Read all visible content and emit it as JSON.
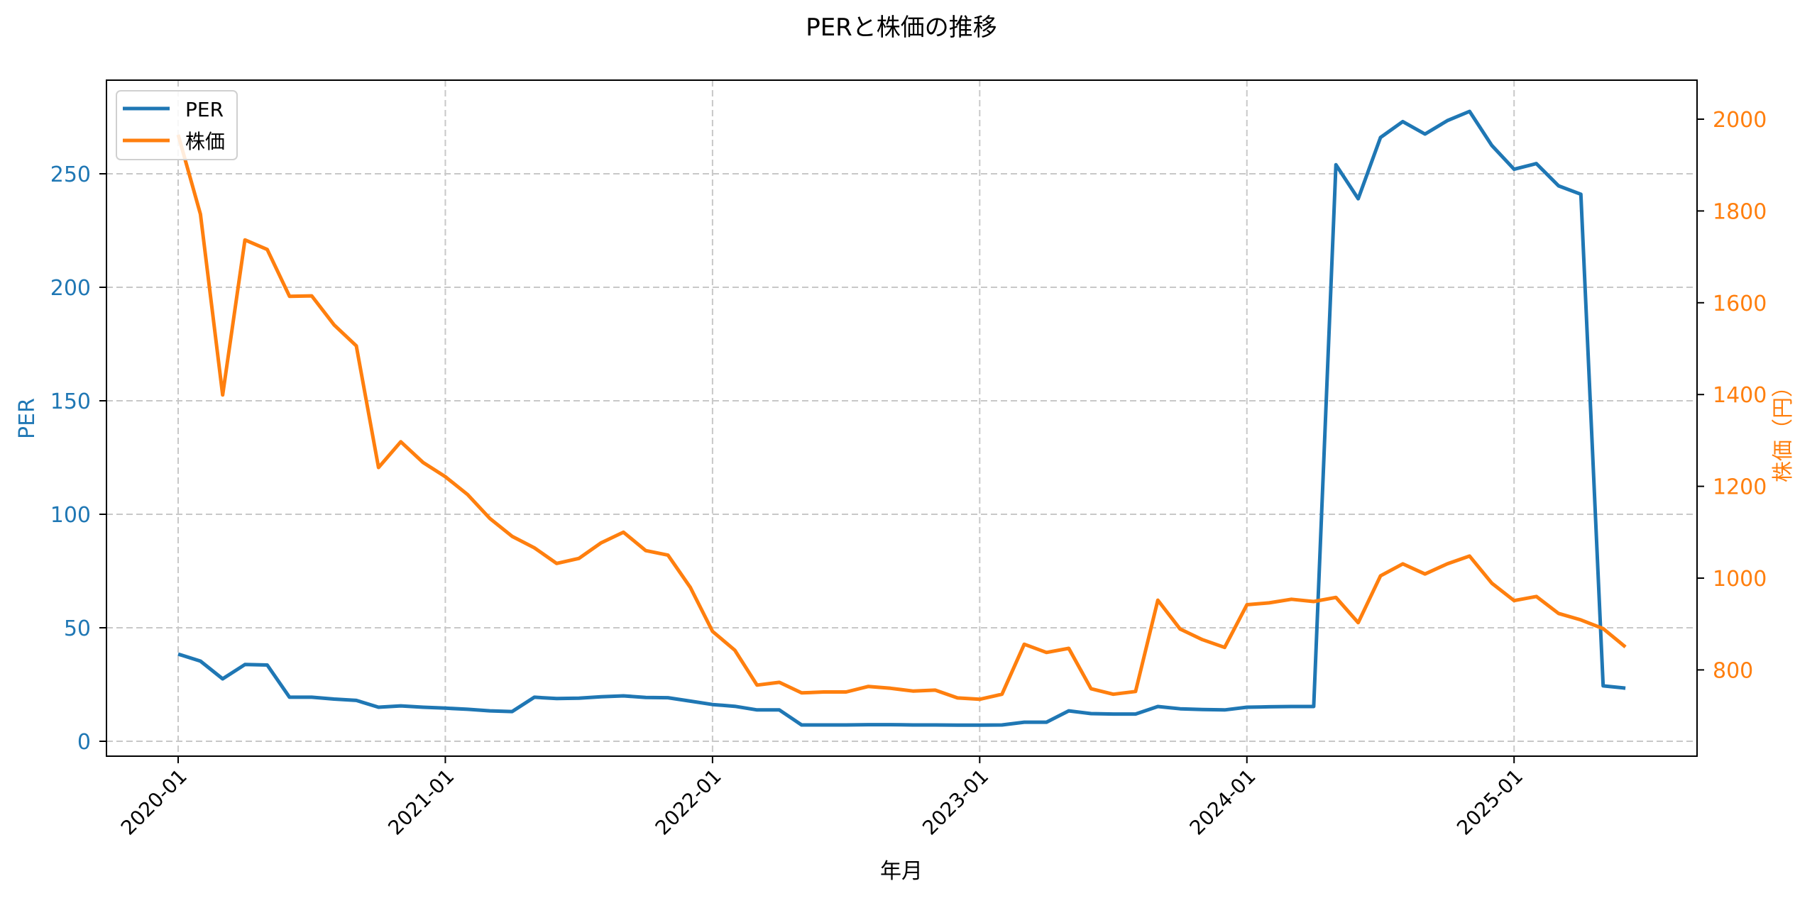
{
  "chart_data": {
    "type": "line",
    "title": "PERと株価の推移",
    "xlabel": "年月",
    "ylabel": "PER",
    "ylabel_right": "株価（円）",
    "x_tick_labels": [
      "2020-01",
      "2021-01",
      "2022-01",
      "2023-01",
      "2024-01",
      "2025-01"
    ],
    "y_ticks_left": [
      0,
      50,
      100,
      150,
      200,
      250
    ],
    "y_ticks_right": [
      800,
      1000,
      1200,
      1400,
      1600,
      1800,
      2000
    ],
    "ylim_left": [
      -6.5,
      291
    ],
    "ylim_right": [
      630,
      2085
    ],
    "grid": true,
    "legend_position": "upper left",
    "x": [
      "2020-01",
      "2020-02",
      "2020-03",
      "2020-04",
      "2020-05",
      "2020-06",
      "2020-07",
      "2020-08",
      "2020-09",
      "2020-10",
      "2020-11",
      "2020-12",
      "2021-01",
      "2021-02",
      "2021-03",
      "2021-04",
      "2021-05",
      "2021-06",
      "2021-07",
      "2021-08",
      "2021-09",
      "2021-10",
      "2021-11",
      "2021-12",
      "2022-01",
      "2022-02",
      "2022-03",
      "2022-04",
      "2022-05",
      "2022-06",
      "2022-07",
      "2022-08",
      "2022-09",
      "2022-10",
      "2022-11",
      "2022-12",
      "2023-01",
      "2023-02",
      "2023-03",
      "2023-04",
      "2023-05",
      "2023-06",
      "2023-07",
      "2023-08",
      "2023-09",
      "2023-10",
      "2023-11",
      "2023-12",
      "2024-01",
      "2024-02",
      "2024-03",
      "2024-04",
      "2024-05",
      "2024-06",
      "2024-07",
      "2024-08",
      "2024-09",
      "2024-10",
      "2024-11",
      "2024-12",
      "2025-01",
      "2025-02",
      "2025-03",
      "2025-04",
      "2025-05",
      "2025-06"
    ],
    "series": [
      {
        "name": "PER",
        "axis": "left",
        "color": "#1f77b4",
        "values": [
          38.4,
          35.3,
          27.5,
          33.8,
          33.6,
          19.4,
          19.4,
          18.6,
          18.0,
          15.0,
          15.6,
          15.0,
          14.6,
          14.1,
          13.4,
          13.1,
          19.4,
          18.8,
          19.0,
          19.6,
          20.0,
          19.3,
          19.2,
          17.7,
          16.2,
          15.4,
          13.8,
          13.8,
          7.2,
          7.2,
          7.2,
          7.3,
          7.3,
          7.2,
          7.2,
          7.1,
          7.1,
          7.2,
          8.4,
          8.4,
          13.4,
          12.2,
          12.0,
          12.0,
          15.3,
          14.3,
          14.0,
          13.8,
          15.0,
          15.2,
          15.3,
          15.3,
          254.0,
          239.0,
          266.0,
          273.0,
          267.5,
          273.4,
          277.5,
          262.5,
          252.0,
          254.5,
          244.7,
          241.0,
          24.4,
          23.4
        ]
      },
      {
        "name": "株価",
        "axis": "right",
        "color": "#ff7f0e",
        "values": [
          1966,
          1793,
          1399,
          1737,
          1716,
          1614,
          1615,
          1552,
          1506,
          1241,
          1297,
          1252,
          1221,
          1182,
          1130,
          1091,
          1066,
          1032,
          1043,
          1077,
          1100,
          1060,
          1050,
          980,
          884,
          843,
          767,
          773,
          750,
          752,
          752,
          764,
          760,
          754,
          756,
          739,
          736,
          747,
          856,
          838,
          847,
          759,
          747,
          753,
          952,
          889,
          866,
          849,
          942,
          946,
          954,
          949,
          958,
          903,
          1005,
          1031,
          1009,
          1031,
          1048,
          989,
          951,
          960,
          923,
          909,
          890,
          850
        ]
      }
    ]
  },
  "colors": {
    "per": "#1f77b4",
    "price": "#ff7f0e",
    "grid": "#c8c8c8",
    "axis": "#000000"
  }
}
